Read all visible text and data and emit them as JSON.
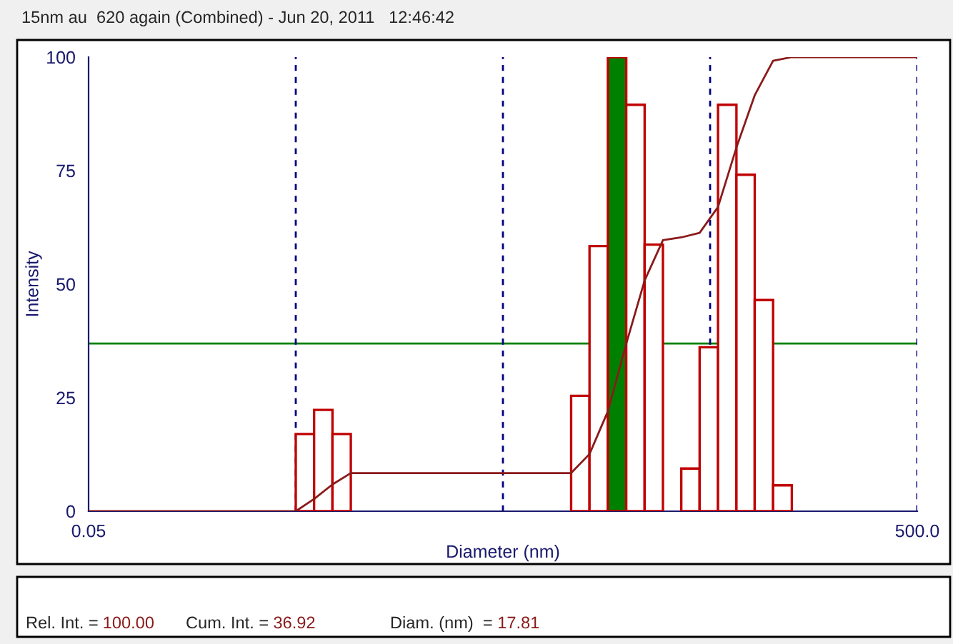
{
  "chart_data": {
    "type": "histogram",
    "title": "15nm au  620 again (Combined) - Jun 20, 2011   12:46:42",
    "xlabel": "Diameter (nm)",
    "ylabel": "Intensity",
    "bins": [
      0.5,
      0.613,
      0.752,
      0.922,
      10.67,
      13.09,
      16.05,
      19.69,
      24.15,
      29.6,
      36.3,
      44.5,
      54.6,
      67.0,
      82.1,
      100.7,
      124
    ],
    "series": [
      {
        "color": "#c00000",
        "colors": [
          "#ffffff",
          "#ffffff",
          "#ffffff",
          "#ffffff",
          "#ffffff",
          "#ffffff",
          "#008000",
          "#ffffff",
          "#ffffff",
          "#ffffff",
          "#ffffff",
          "#ffffff",
          "#ffffff",
          "#ffffff",
          "#ffffff",
          "#ffffff"
        ],
        "values": [
          17,
          22.3,
          17,
          0,
          25.4,
          58.4,
          100,
          89.5,
          58.7,
          0,
          9.4,
          36.1,
          89.5,
          74.1,
          46.5,
          5.7
        ]
      },
      {
        "type": "line",
        "color": "#8b1a1a",
        "x": [
          0.05,
          0.5,
          0.613,
          0.752,
          0.922,
          10.67,
          13.09,
          16.05,
          19.69,
          24.15,
          29.6,
          36.3,
          44.5,
          54.6,
          67.0,
          82.1,
          100.7,
          124,
          500
        ],
        "values": [
          0,
          0,
          2.7,
          5.9,
          8.4,
          8.4,
          12.6,
          22.0,
          36.9,
          50.8,
          59.7,
          60.3,
          61.3,
          67.0,
          80.1,
          91.6,
          99.2,
          100,
          100
        ]
      }
    ],
    "log": "x",
    "xlim": [
      0.05,
      500
    ],
    "xticks": [
      {
        "value": 0.05,
        "label": "0.05"
      },
      {
        "value": 500,
        "label": "500.0"
      }
    ],
    "ylim": [
      0,
      100
    ],
    "yticks": [
      0,
      25,
      50,
      75,
      100
    ],
    "ref_lines": [
      {
        "axis": "y",
        "value": 36.92,
        "color": "#008000",
        "line_style": "solid"
      },
      {
        "axis": "x",
        "value": 0.5,
        "color": "#000080",
        "line_style": "dashed"
      },
      {
        "axis": "x",
        "value": 5,
        "color": "#000080",
        "line_style": "dashed"
      },
      {
        "axis": "x",
        "value": 50,
        "color": "#000080",
        "line_style": "dashed"
      },
      {
        "axis": "x",
        "value": 500,
        "color": "#000080",
        "line_style": "dashed"
      }
    ],
    "annotations": [
      "Rel. Int. = 100.00",
      "Cum. Int. = 36.92",
      "Diam. (nm)  = 17.81"
    ],
    "grid": false,
    "legend": false
  }
}
